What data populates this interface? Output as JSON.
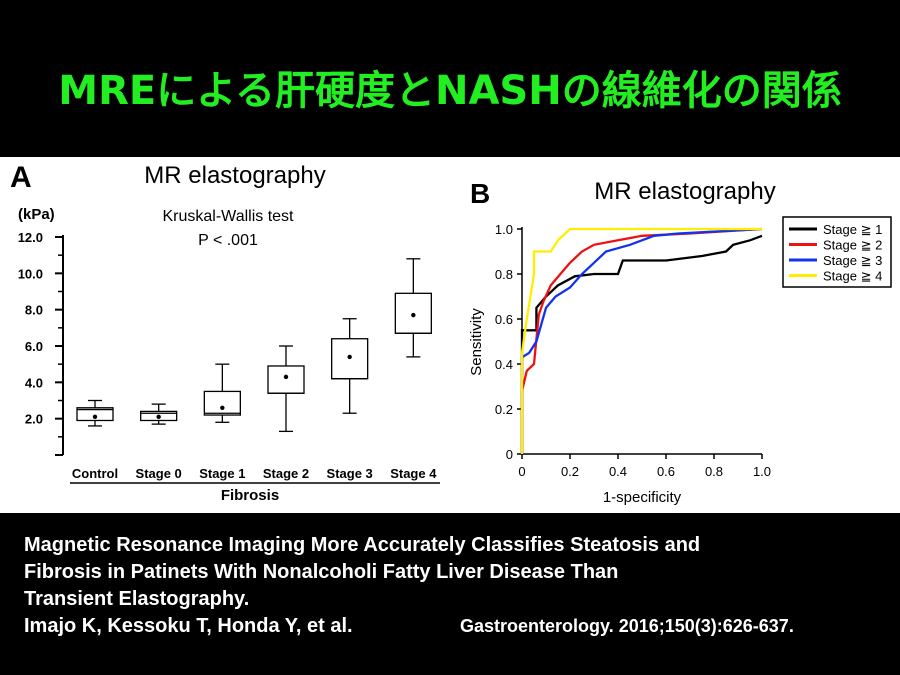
{
  "slide": {
    "title": "MREによる肝硬度とNASHの線維化の関係",
    "citation_lines": [
      "Magnetic Resonance Imaging More Accurately Classifies Steatosis and",
      "Fibrosis in Patinets With Nonalcoholi Fatty Liver Disease Than",
      "Transient Elastography."
    ],
    "authors": "Imajo K, Kessoku T, Honda Y, et al.",
    "journal": "Gastroenterology. 2016;150(3):626-637."
  },
  "colors": {
    "title": "#22ee22",
    "stage1": "#000000",
    "stage2": "#ee1111",
    "stage3": "#1133ee",
    "stage4": "#ffee00"
  },
  "chart_data": [
    {
      "type": "boxplot",
      "panel": "A",
      "title": "MR elastography",
      "subtitle_line1": "Kruskal-Wallis test",
      "subtitle_line2": "P < .001",
      "ylabel": "(kPa)",
      "xlabel": "Fibrosis",
      "ylim": [
        0,
        12
      ],
      "yticks": [
        "2.0",
        "4.0",
        "6.0",
        "8.0",
        "10.0",
        "12.0"
      ],
      "ytick_values": [
        2,
        4,
        6,
        8,
        10,
        12
      ],
      "categories": [
        "Control",
        "Stage 0",
        "Stage 1",
        "Stage 2",
        "Stage 3",
        "Stage 4"
      ],
      "boxes": [
        {
          "min": 1.6,
          "q1": 1.9,
          "median": 2.5,
          "q3": 2.6,
          "max": 3.0,
          "mean": 2.1
        },
        {
          "min": 1.7,
          "q1": 1.9,
          "median": 2.3,
          "q3": 2.4,
          "max": 2.8,
          "mean": 2.1
        },
        {
          "min": 1.8,
          "q1": 2.2,
          "median": 2.3,
          "q3": 3.5,
          "max": 5.0,
          "mean": 2.6
        },
        {
          "min": 1.3,
          "q1": 3.4,
          "median": 3.4,
          "q3": 4.9,
          "max": 6.0,
          "mean": 4.3
        },
        {
          "min": 2.3,
          "q1": 4.2,
          "median": 4.2,
          "q3": 6.4,
          "max": 7.5,
          "mean": 5.4
        },
        {
          "min": 5.4,
          "q1": 6.7,
          "median": 6.7,
          "q3": 8.9,
          "max": 10.8,
          "mean": 7.7
        }
      ]
    },
    {
      "type": "line",
      "panel": "B",
      "title": "MR elastography",
      "xlabel": "1-specificity",
      "ylabel": "Sensitivity",
      "xlim": [
        0,
        1
      ],
      "ylim": [
        0,
        1
      ],
      "xticks": [
        "0",
        "0.2",
        "0.4",
        "0.6",
        "0.8",
        "1.0"
      ],
      "yticks": [
        "0",
        "0.2",
        "0.4",
        "0.6",
        "0.8",
        "1.0"
      ],
      "legend_position": "top-right",
      "series": [
        {
          "name": "Stage ≧ 1",
          "color": "#000000",
          "points": [
            [
              0,
              0
            ],
            [
              0,
              0.55
            ],
            [
              0.06,
              0.55
            ],
            [
              0.06,
              0.65
            ],
            [
              0.1,
              0.7
            ],
            [
              0.15,
              0.75
            ],
            [
              0.22,
              0.79
            ],
            [
              0.3,
              0.8
            ],
            [
              0.4,
              0.8
            ],
            [
              0.42,
              0.86
            ],
            [
              0.6,
              0.86
            ],
            [
              0.75,
              0.88
            ],
            [
              0.85,
              0.9
            ],
            [
              0.88,
              0.93
            ],
            [
              0.95,
              0.95
            ],
            [
              1.0,
              0.97
            ]
          ]
        },
        {
          "name": "Stage ≧ 2",
          "color": "#ee1111",
          "points": [
            [
              0,
              0
            ],
            [
              0,
              0.28
            ],
            [
              0.02,
              0.37
            ],
            [
              0.05,
              0.4
            ],
            [
              0.07,
              0.62
            ],
            [
              0.09,
              0.68
            ],
            [
              0.12,
              0.75
            ],
            [
              0.16,
              0.8
            ],
            [
              0.2,
              0.85
            ],
            [
              0.25,
              0.9
            ],
            [
              0.3,
              0.93
            ],
            [
              0.4,
              0.95
            ],
            [
              0.5,
              0.97
            ],
            [
              0.7,
              0.98
            ],
            [
              1.0,
              1.0
            ]
          ]
        },
        {
          "name": "Stage ≧ 3",
          "color": "#1133ee",
          "points": [
            [
              0,
              0
            ],
            [
              0,
              0.43
            ],
            [
              0.03,
              0.45
            ],
            [
              0.06,
              0.5
            ],
            [
              0.1,
              0.65
            ],
            [
              0.14,
              0.7
            ],
            [
              0.2,
              0.74
            ],
            [
              0.25,
              0.8
            ],
            [
              0.3,
              0.85
            ],
            [
              0.35,
              0.9
            ],
            [
              0.45,
              0.93
            ],
            [
              0.55,
              0.97
            ],
            [
              0.65,
              0.98
            ],
            [
              1.0,
              1.0
            ]
          ]
        },
        {
          "name": "Stage ≧ 4",
          "color": "#ffee00",
          "points": [
            [
              0,
              0
            ],
            [
              0,
              0.45
            ],
            [
              0.02,
              0.6
            ],
            [
              0.05,
              0.8
            ],
            [
              0.05,
              0.9
            ],
            [
              0.12,
              0.9
            ],
            [
              0.15,
              0.95
            ],
            [
              0.2,
              1.0
            ],
            [
              1.0,
              1.0
            ]
          ]
        }
      ]
    }
  ]
}
